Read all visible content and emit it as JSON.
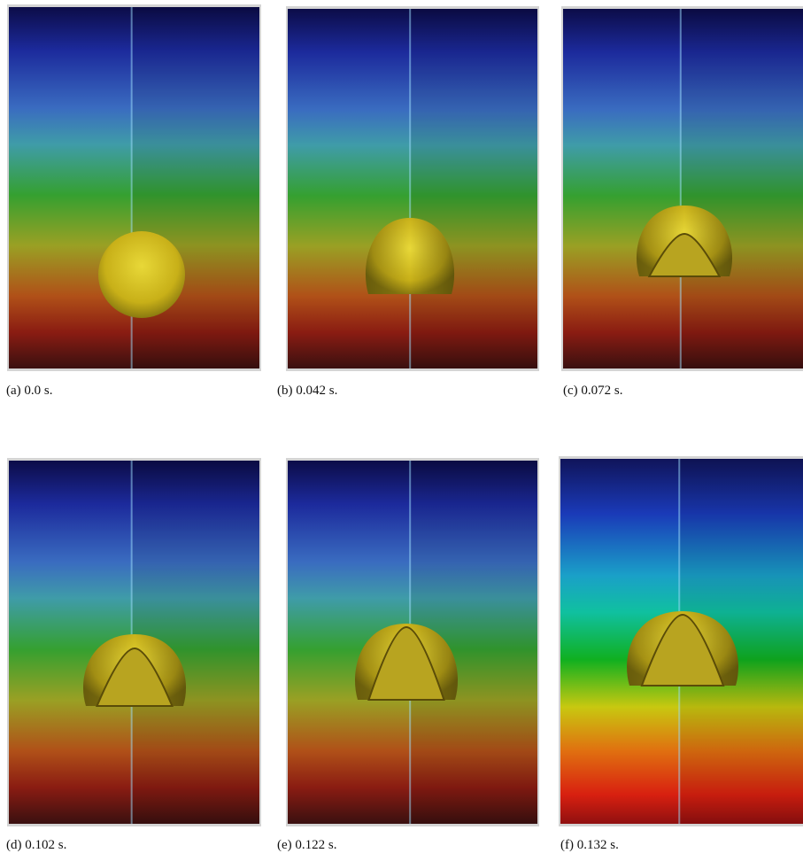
{
  "panels": [
    {
      "caption": "(a) 0.0 s."
    },
    {
      "caption": "(b) 0.042 s."
    },
    {
      "caption": "(c) 0.072 s."
    },
    {
      "caption": "(d) 0.102 s."
    },
    {
      "caption": "(e) 0.122 s."
    },
    {
      "caption": "(f) 0.132 s."
    }
  ]
}
